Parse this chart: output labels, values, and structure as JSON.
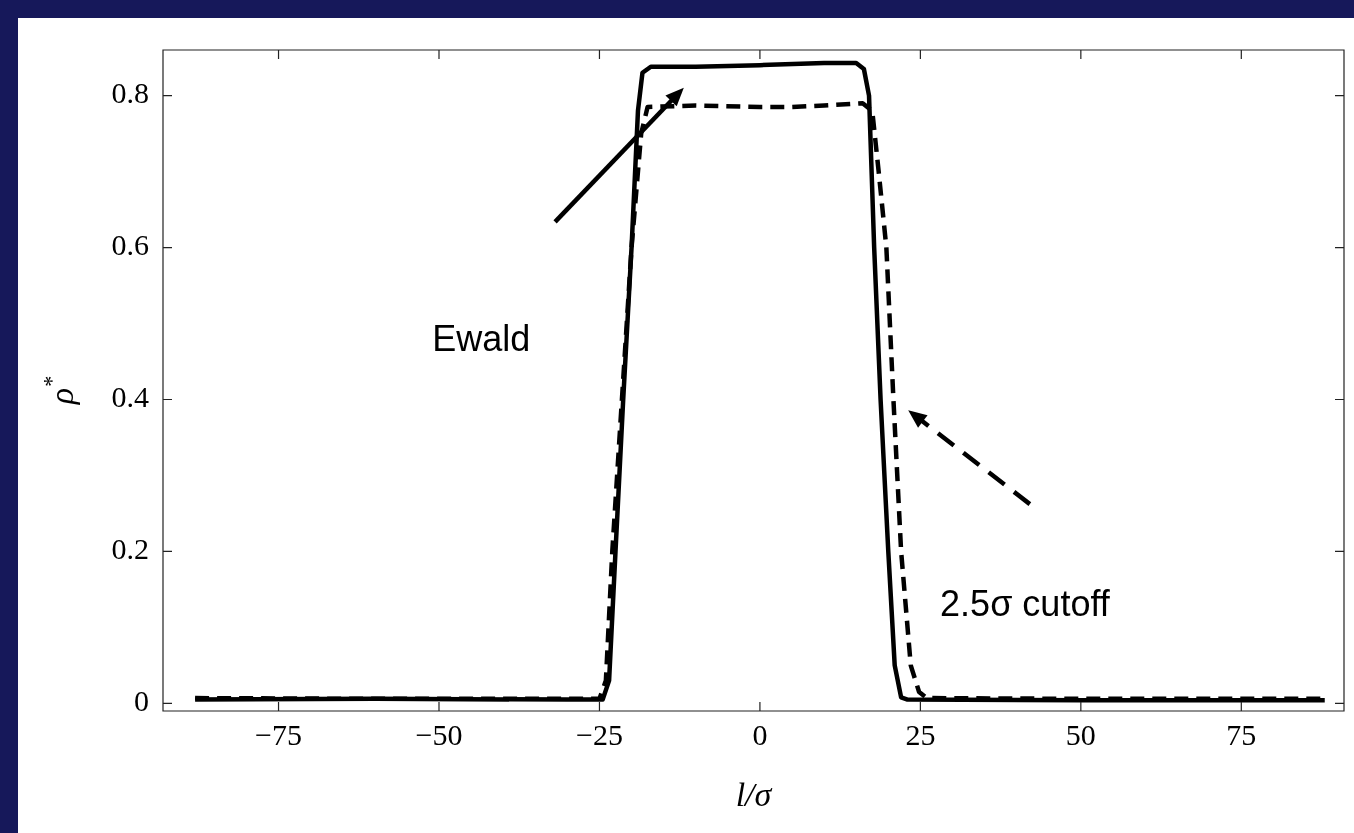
{
  "chart_data": {
    "type": "line",
    "xlabel": "l/σ",
    "ylabel": "ρ$^{*}$",
    "xlim": [
      -93,
      91
    ],
    "ylim": [
      -0.01,
      0.86
    ],
    "xticks": [
      -75,
      -50,
      -25,
      0,
      25,
      50,
      75
    ],
    "yticks": [
      0,
      0.2,
      0.4,
      0.6,
      0.8
    ],
    "grid": false,
    "legend": false,
    "marker": "none",
    "series": [
      {
        "color": "#000000",
        "line_style": "solid",
        "x": [
          -88,
          -60,
          -30,
          -24.5,
          -23.5,
          -22.5,
          -21.3,
          -20,
          -19,
          -18.3,
          -17,
          -10,
          0,
          10,
          15,
          16.2,
          17,
          17.8,
          18.8,
          20,
          21,
          22,
          23,
          50,
          88
        ],
        "values": [
          0.005,
          0.006,
          0.005,
          0.005,
          0.03,
          0.2,
          0.4,
          0.6,
          0.78,
          0.83,
          0.838,
          0.838,
          0.84,
          0.843,
          0.843,
          0.835,
          0.8,
          0.6,
          0.4,
          0.2,
          0.05,
          0.008,
          0.005,
          0.004,
          0.004
        ]
      },
      {
        "color": "#000000",
        "line_style": "dashed",
        "x": [
          -88,
          -60,
          -30,
          -25,
          -24,
          -23,
          -21.5,
          -20,
          -18.5,
          -17.5,
          -10,
          0,
          5,
          10,
          16,
          17.5,
          18.5,
          19.7,
          20.8,
          22,
          23.5,
          24.8,
          26,
          50,
          88
        ],
        "values": [
          0.007,
          0.006,
          0.006,
          0.006,
          0.03,
          0.2,
          0.4,
          0.6,
          0.75,
          0.785,
          0.787,
          0.785,
          0.785,
          0.787,
          0.79,
          0.78,
          0.7,
          0.6,
          0.4,
          0.2,
          0.05,
          0.015,
          0.007,
          0.006,
          0.006
        ]
      }
    ],
    "annotations": [
      "Ewald",
      "2.5σ cutoff"
    ]
  }
}
